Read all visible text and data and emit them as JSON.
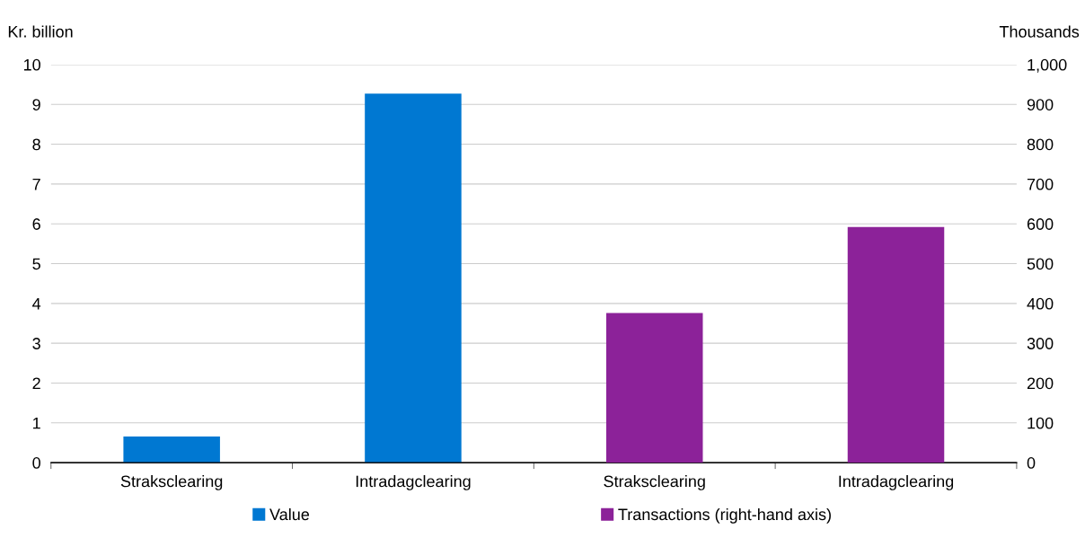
{
  "chart_data": {
    "type": "bar",
    "categories": [
      "Straksclearing",
      "Intradagclearing",
      "Straksclearing",
      "Intradagclearing"
    ],
    "series": [
      {
        "name": "Value",
        "color": "#0078d2",
        "values": [
          0.66,
          9.27,
          null,
          null
        ]
      },
      {
        "name": "Transactions (right-hand axis)",
        "color": "#8c2299",
        "values": [
          null,
          null,
          376,
          592
        ],
        "axis": "y2"
      }
    ],
    "ylabel": "Kr. billion",
    "y2label": "Thousands",
    "ylim": [
      0,
      10
    ],
    "yticks": [
      0,
      1,
      2,
      3,
      4,
      5,
      6,
      7,
      8,
      9,
      10
    ],
    "y2lim": [
      0,
      1000
    ],
    "y2ticks": [
      0,
      100,
      200,
      300,
      400,
      500,
      600,
      700,
      800,
      900,
      {
        "value": 1000,
        "label": "1,000"
      }
    ],
    "grid": "y",
    "legend": "bottom"
  }
}
